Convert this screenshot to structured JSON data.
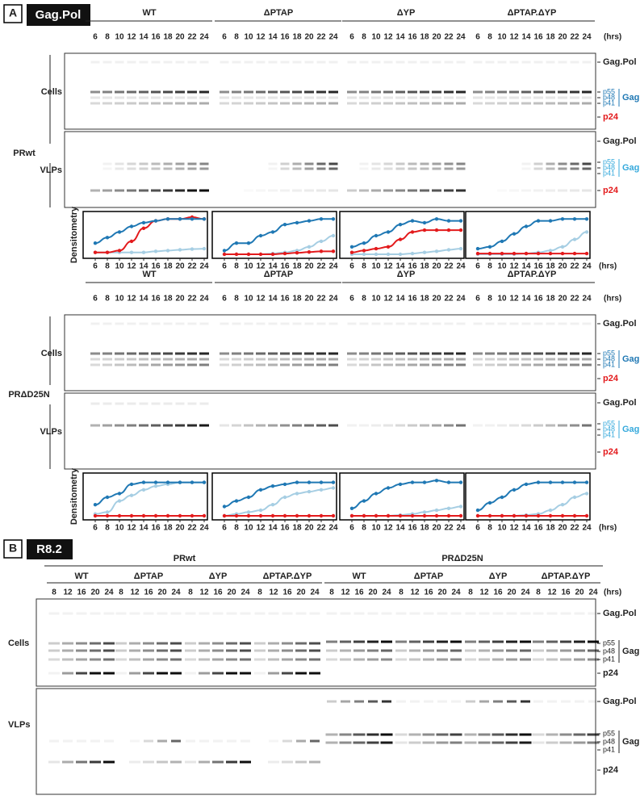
{
  "panel_a": {
    "label": "A",
    "title": "Gag.Pol",
    "time_unit": "(hrs)",
    "densitometry_label": "Densitometry",
    "groups": [
      "WT",
      "ΔPTAP",
      "ΔYP",
      "ΔPTAP.ΔYP"
    ],
    "timepoints": [
      6,
      8,
      10,
      12,
      14,
      16,
      18,
      20,
      22,
      24
    ],
    "rows": [
      "Cells",
      "VLPs"
    ],
    "band_labels": {
      "gag_pol": "Gag.Pol",
      "p55": "p55",
      "p48": "p48",
      "p41": "p41",
      "gag": "Gag",
      "p24": "p24"
    },
    "densitometry_ylim": [
      0,
      1
    ],
    "blocks": [
      {
        "label": "PRwt",
        "densitometry": [
          {
            "series": [
              {
                "color": "#a6cee3",
                "values": [
                  0.05,
                  0.05,
                  0.05,
                  0.05,
                  0.05,
                  0.08,
                  0.1,
                  0.12,
                  0.14,
                  0.15
                ]
              },
              {
                "color": "#e31a1c",
                "values": [
                  0.05,
                  0.05,
                  0.1,
                  0.35,
                  0.7,
                  0.9,
                  0.95,
                  0.95,
                  1.0,
                  0.95
                ]
              },
              {
                "color": "#1f78b4",
                "values": [
                  0.3,
                  0.45,
                  0.6,
                  0.75,
                  0.85,
                  0.9,
                  0.95,
                  0.95,
                  0.95,
                  0.95
                ]
              }
            ]
          },
          {
            "series": [
              {
                "color": "#a6cee3",
                "values": [
                  0,
                  0,
                  0,
                  0,
                  0.02,
                  0.05,
                  0.1,
                  0.2,
                  0.35,
                  0.5
                ]
              },
              {
                "color": "#e31a1c",
                "values": [
                  0,
                  0,
                  0,
                  0,
                  0,
                  0.02,
                  0.04,
                  0.06,
                  0.08,
                  0.08
                ]
              },
              {
                "color": "#1f78b4",
                "values": [
                  0.1,
                  0.3,
                  0.3,
                  0.5,
                  0.6,
                  0.8,
                  0.85,
                  0.9,
                  0.95,
                  0.95
                ]
              }
            ]
          },
          {
            "series": [
              {
                "color": "#a6cee3",
                "values": [
                  0,
                  0,
                  0,
                  0,
                  0,
                  0.02,
                  0.05,
                  0.08,
                  0.12,
                  0.15
                ]
              },
              {
                "color": "#e31a1c",
                "values": [
                  0.05,
                  0.1,
                  0.15,
                  0.2,
                  0.4,
                  0.6,
                  0.65,
                  0.65,
                  0.65,
                  0.65
                ]
              },
              {
                "color": "#1f78b4",
                "values": [
                  0.2,
                  0.3,
                  0.5,
                  0.6,
                  0.8,
                  0.9,
                  0.85,
                  0.95,
                  0.9,
                  0.9
                ]
              }
            ]
          },
          {
            "series": [
              {
                "color": "#a6cee3",
                "values": [
                  0,
                  0,
                  0,
                  0,
                  0.02,
                  0.05,
                  0.1,
                  0.2,
                  0.4,
                  0.6
                ]
              },
              {
                "color": "#e31a1c",
                "values": [
                  0.02,
                  0.02,
                  0.02,
                  0.02,
                  0.02,
                  0.02,
                  0.02,
                  0.02,
                  0.02,
                  0.02
                ]
              },
              {
                "color": "#1f78b4",
                "values": [
                  0.15,
                  0.2,
                  0.35,
                  0.55,
                  0.75,
                  0.9,
                  0.9,
                  0.95,
                  0.95,
                  0.95
                ]
              }
            ]
          }
        ]
      },
      {
        "label": "PRΔD25N",
        "densitometry": [
          {
            "series": [
              {
                "color": "#a6cee3",
                "values": [
                  0.05,
                  0.1,
                  0.4,
                  0.55,
                  0.7,
                  0.8,
                  0.85,
                  0.9,
                  0.9,
                  0.9
                ]
              },
              {
                "color": "#e31a1c",
                "values": [
                  0,
                  0,
                  0,
                  0,
                  0,
                  0,
                  0,
                  0,
                  0,
                  0
                ]
              },
              {
                "color": "#1f78b4",
                "values": [
                  0.3,
                  0.5,
                  0.6,
                  0.85,
                  0.9,
                  0.9,
                  0.9,
                  0.9,
                  0.9,
                  0.9
                ]
              }
            ]
          },
          {
            "series": [
              {
                "color": "#a6cee3",
                "values": [
                  0,
                  0.05,
                  0.1,
                  0.15,
                  0.3,
                  0.5,
                  0.6,
                  0.65,
                  0.7,
                  0.75
                ]
              },
              {
                "color": "#e31a1c",
                "values": [
                  0,
                  0,
                  0,
                  0,
                  0,
                  0,
                  0,
                  0,
                  0,
                  0
                ]
              },
              {
                "color": "#1f78b4",
                "values": [
                  0.25,
                  0.4,
                  0.5,
                  0.7,
                  0.8,
                  0.85,
                  0.9,
                  0.9,
                  0.9,
                  0.9
                ]
              }
            ]
          },
          {
            "series": [
              {
                "color": "#a6cee3",
                "values": [
                  0,
                  0,
                  0,
                  0,
                  0.02,
                  0.05,
                  0.1,
                  0.15,
                  0.2,
                  0.25
                ]
              },
              {
                "color": "#e31a1c",
                "values": [
                  0,
                  0,
                  0,
                  0,
                  0,
                  0,
                  0,
                  0,
                  0,
                  0
                ]
              },
              {
                "color": "#1f78b4",
                "values": [
                  0.2,
                  0.4,
                  0.6,
                  0.75,
                  0.85,
                  0.9,
                  0.9,
                  0.95,
                  0.9,
                  0.9
                ]
              }
            ]
          },
          {
            "series": [
              {
                "color": "#a6cee3",
                "values": [
                  0,
                  0,
                  0,
                  0,
                  0.02,
                  0.05,
                  0.15,
                  0.3,
                  0.5,
                  0.6
                ]
              },
              {
                "color": "#e31a1c",
                "values": [
                  0,
                  0,
                  0,
                  0,
                  0,
                  0,
                  0,
                  0,
                  0,
                  0
                ]
              },
              {
                "color": "#1f78b4",
                "values": [
                  0.15,
                  0.35,
                  0.5,
                  0.7,
                  0.85,
                  0.9,
                  0.9,
                  0.9,
                  0.9,
                  0.9
                ]
              }
            ]
          }
        ]
      }
    ]
  },
  "panel_b": {
    "label": "B",
    "title": "R8.2",
    "time_unit": "(hrs)",
    "conditions": [
      {
        "label": "PRwt",
        "groups": [
          "WT",
          "ΔPTAP",
          "ΔYP",
          "ΔPTAP.ΔYP"
        ]
      },
      {
        "label": "PRΔD25N",
        "groups": [
          "WT",
          "ΔPTAP",
          "ΔYP",
          "ΔPTAP.ΔYP"
        ]
      }
    ],
    "timepoints": [
      8,
      12,
      16,
      20,
      24
    ],
    "rows": [
      "Cells",
      "VLPs"
    ],
    "band_labels": {
      "gag_pol": "Gag.Pol",
      "p55": "p55",
      "p48": "p48",
      "p41": "p41",
      "gag": "Gag",
      "p24": "p24"
    }
  }
}
